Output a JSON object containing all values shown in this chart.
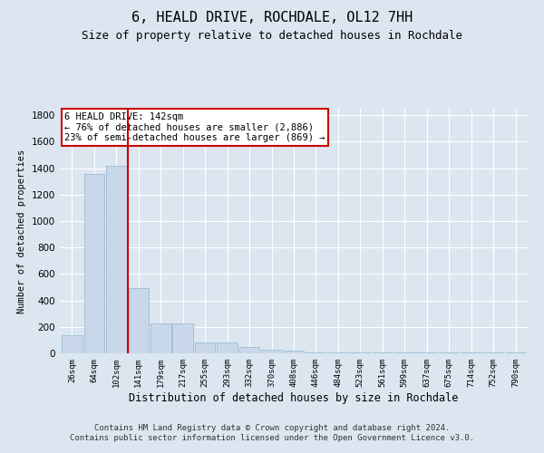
{
  "title": "6, HEALD DRIVE, ROCHDALE, OL12 7HH",
  "subtitle": "Size of property relative to detached houses in Rochdale",
  "xlabel": "Distribution of detached houses by size in Rochdale",
  "ylabel": "Number of detached properties",
  "bin_labels": [
    "26sqm",
    "64sqm",
    "102sqm",
    "141sqm",
    "179sqm",
    "217sqm",
    "255sqm",
    "293sqm",
    "332sqm",
    "370sqm",
    "408sqm",
    "446sqm",
    "484sqm",
    "523sqm",
    "561sqm",
    "599sqm",
    "637sqm",
    "675sqm",
    "714sqm",
    "752sqm",
    "790sqm"
  ],
  "bar_values": [
    140,
    1355,
    1420,
    490,
    225,
    225,
    85,
    85,
    48,
    30,
    20,
    10,
    10,
    10,
    10,
    10,
    10,
    10,
    10,
    10,
    10
  ],
  "bar_color": "#c8d8ea",
  "bar_edge_color": "#9bbcd4",
  "vline_x": 3.0,
  "vline_color": "#cc0000",
  "annotation_text": "6 HEALD DRIVE: 142sqm\n← 76% of detached houses are smaller (2,886)\n23% of semi-detached houses are larger (869) →",
  "annotation_box_color": "#ffffff",
  "annotation_box_edge": "#cc0000",
  "bg_color": "#dce6f0",
  "grid_color": "#ffffff",
  "footer": "Contains HM Land Registry data © Crown copyright and database right 2024.\nContains public sector information licensed under the Open Government Licence v3.0.",
  "ylim": [
    0,
    1850
  ],
  "title_fontsize": 11,
  "subtitle_fontsize": 9
}
